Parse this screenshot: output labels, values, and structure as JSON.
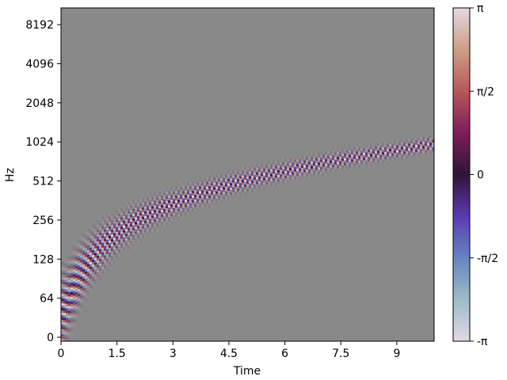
{
  "chart_data": {
    "type": "heatmap",
    "title": "",
    "xlabel": "Time",
    "ylabel": "Hz",
    "xlim": [
      0,
      10
    ],
    "x_ticks": [
      0,
      1.5,
      3,
      4.5,
      6,
      7.5,
      9
    ],
    "x_tick_labels": [
      "0",
      "1.5",
      "3",
      "4.5",
      "6",
      "7.5",
      "9"
    ],
    "y_scale": "symlog (base 2)",
    "y_ticks": [
      0,
      64,
      128,
      256,
      512,
      1024,
      2048,
      4096,
      8192
    ],
    "y_tick_labels": [
      "0",
      "64",
      "128",
      "256",
      "512",
      "1024",
      "2048",
      "4096",
      "8192"
    ],
    "ylim": [
      0,
      11025
    ],
    "background_color": "#898989",
    "colorbar": {
      "colormap": "twilight",
      "range": [
        -3.1416,
        3.1416
      ],
      "ticks": [
        -3.1416,
        -1.5708,
        0,
        1.5708,
        3.1416
      ],
      "tick_labels": [
        "-π",
        "-π/2",
        "0",
        "π/2",
        "π"
      ]
    },
    "series": [
      {
        "description": "phase ridge of a rising chirp",
        "time": [
          0,
          0.5,
          1,
          1.5,
          2,
          3,
          4,
          5,
          6,
          7,
          8,
          9,
          10
        ],
        "frequency_hz": [
          40,
          95,
          150,
          200,
          250,
          340,
          430,
          520,
          610,
          700,
          790,
          880,
          980
        ]
      }
    ]
  }
}
